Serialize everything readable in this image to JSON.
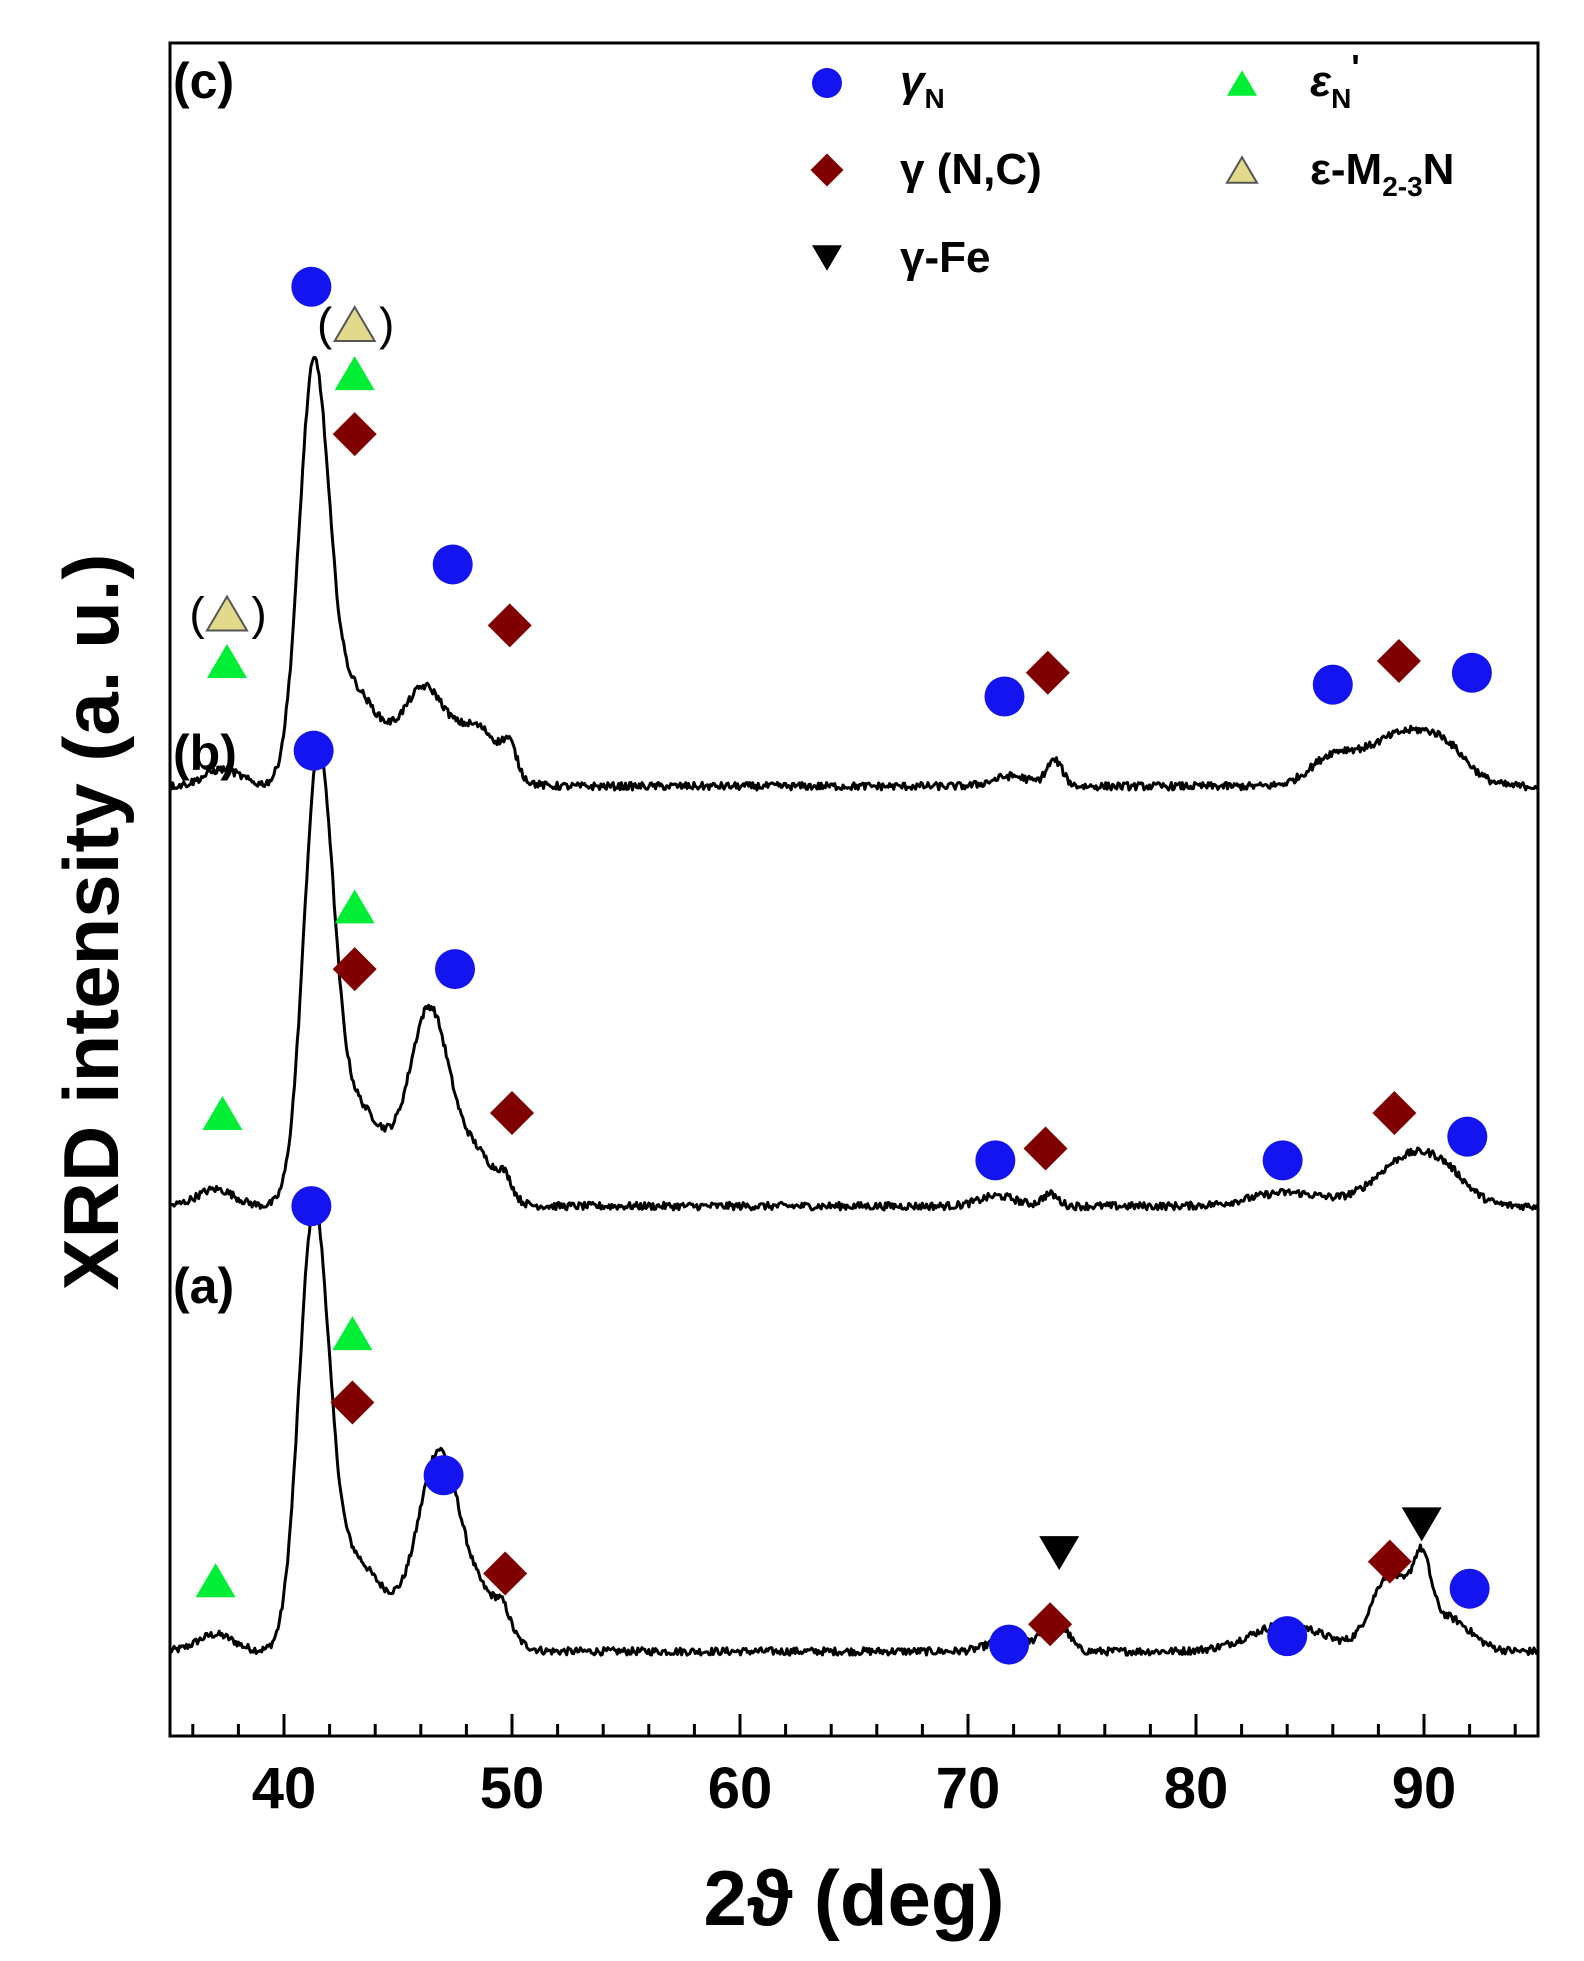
{
  "chart_data": {
    "type": "line",
    "xlabel": "2ϑ (deg)",
    "ylabel": "XRD intensity (a. u.)",
    "xlim": [
      35,
      95
    ],
    "x_major_ticks": [
      40,
      50,
      60,
      70,
      80,
      90
    ],
    "grid": false,
    "legend_position": "top",
    "legend": [
      {
        "marker": "circle",
        "color": "#1414f0",
        "label": "γ",
        "sub": "N",
        "sup": ""
      },
      {
        "marker": "diamond",
        "color": "#800000",
        "label": "γ (N,C)",
        "sub": "",
        "sup": ""
      },
      {
        "marker": "triangle-down",
        "color": "#000000",
        "label": "γ-Fe",
        "sub": "",
        "sup": ""
      },
      {
        "marker": "triangle-up",
        "color": "#00ee33",
        "label": "ε",
        "sub": "N",
        "sup": "'"
      },
      {
        "marker": "triangle-up-outline",
        "color": "#e3d98a",
        "label": "ε-M",
        "sub": "2-3",
        "sup": "",
        "suffix": "N"
      }
    ],
    "series": [
      {
        "name": "(a)",
        "baseline": 5.0,
        "peaks": [
          {
            "x": 37.0,
            "h": 1.0,
            "w": 0.8
          },
          {
            "x": 41.3,
            "h": 25.0,
            "w": 0.65
          },
          {
            "x": 42.7,
            "h": 3.5,
            "w": 0.9
          },
          {
            "x": 44.0,
            "h": 3.0,
            "w": 1.2
          },
          {
            "x": 46.8,
            "h": 11.5,
            "w": 0.9
          },
          {
            "x": 48.8,
            "h": 2.8,
            "w": 0.9
          },
          {
            "x": 49.6,
            "h": 1.0,
            "w": 0.3
          },
          {
            "x": 71.8,
            "h": 0.8,
            "w": 0.8
          },
          {
            "x": 73.4,
            "h": 1.2,
            "w": 0.35
          },
          {
            "x": 74.2,
            "h": 1.2,
            "w": 0.35
          },
          {
            "x": 84.0,
            "h": 1.6,
            "w": 1.6
          },
          {
            "x": 88.5,
            "h": 4.5,
            "w": 0.8
          },
          {
            "x": 89.9,
            "h": 4.0,
            "w": 0.4
          },
          {
            "x": 91.0,
            "h": 2.0,
            "w": 1.0
          }
        ],
        "markers": [
          {
            "type": "phase_gammaN",
            "x": 41.2,
            "y": 31.3
          },
          {
            "type": "phase_epsN",
            "x": 43.0,
            "y": 23.8
          },
          {
            "type": "phase_gammaNC",
            "x": 43.0,
            "y": 19.7
          },
          {
            "type": "phase_gammaN",
            "x": 47.0,
            "y": 15.4
          },
          {
            "type": "phase_epsN",
            "x": 37.0,
            "y": 9.2
          },
          {
            "type": "phase_gammaNC",
            "x": 49.7,
            "y": 9.6
          },
          {
            "type": "phase_gammaFe",
            "x": 74.0,
            "y": 10.8
          },
          {
            "type": "phase_gammaNC",
            "x": 73.6,
            "y": 6.6
          },
          {
            "type": "phase_gammaN",
            "x": 71.8,
            "y": 5.4
          },
          {
            "type": "phase_gammaFe",
            "x": 89.9,
            "y": 12.5
          },
          {
            "type": "phase_gammaNC",
            "x": 88.5,
            "y": 10.3
          },
          {
            "type": "phase_gammaN",
            "x": 84.0,
            "y": 5.9
          },
          {
            "type": "phase_gammaN",
            "x": 92.0,
            "y": 8.7
          }
        ]
      },
      {
        "name": "(b)",
        "baseline": 31.3,
        "peaks": [
          {
            "x": 37.0,
            "h": 1.0,
            "w": 0.8
          },
          {
            "x": 41.5,
            "h": 25.5,
            "w": 0.65
          },
          {
            "x": 42.9,
            "h": 4.0,
            "w": 0.9
          },
          {
            "x": 44.2,
            "h": 3.0,
            "w": 1.2
          },
          {
            "x": 46.4,
            "h": 11.0,
            "w": 0.85
          },
          {
            "x": 48.4,
            "h": 3.0,
            "w": 0.9
          },
          {
            "x": 49.7,
            "h": 1.0,
            "w": 0.3
          },
          {
            "x": 71.3,
            "h": 0.6,
            "w": 0.8
          },
          {
            "x": 73.6,
            "h": 0.7,
            "w": 0.35
          },
          {
            "x": 84.0,
            "h": 0.8,
            "w": 1.6
          },
          {
            "x": 89.3,
            "h": 2.8,
            "w": 1.4
          },
          {
            "x": 91.0,
            "h": 1.2,
            "w": 1.0
          }
        ],
        "markers": [
          {
            "type": "phase_epsN",
            "x": 43.1,
            "y": 49.0
          },
          {
            "type": "phase_gammaNC",
            "x": 43.1,
            "y": 45.3
          },
          {
            "type": "phase_gammaN",
            "x": 47.5,
            "y": 45.3
          },
          {
            "type": "phase_epsN",
            "x": 37.3,
            "y": 36.8
          },
          {
            "type": "phase_gammaNC",
            "x": 50.0,
            "y": 36.8
          },
          {
            "type": "phase_gammaNC",
            "x": 73.4,
            "y": 34.7
          },
          {
            "type": "phase_gammaN",
            "x": 71.2,
            "y": 34.0
          },
          {
            "type": "phase_gammaNC",
            "x": 88.7,
            "y": 36.8
          },
          {
            "type": "phase_gammaN",
            "x": 83.8,
            "y": 34.0
          },
          {
            "type": "phase_gammaN",
            "x": 91.9,
            "y": 35.4
          }
        ]
      },
      {
        "name": "(c)",
        "baseline": 56.1,
        "peaks": [
          {
            "x": 37.3,
            "h": 1.0,
            "w": 0.8
          },
          {
            "x": 41.3,
            "h": 24.0,
            "w": 0.65
          },
          {
            "x": 42.8,
            "h": 4.0,
            "w": 0.9
          },
          {
            "x": 44.0,
            "h": 2.5,
            "w": 1.2
          },
          {
            "x": 46.2,
            "h": 5.2,
            "w": 0.9
          },
          {
            "x": 48.5,
            "h": 3.4,
            "w": 1.0
          },
          {
            "x": 49.9,
            "h": 1.5,
            "w": 0.3
          },
          {
            "x": 71.9,
            "h": 0.6,
            "w": 0.8
          },
          {
            "x": 73.8,
            "h": 1.5,
            "w": 0.35
          },
          {
            "x": 86.0,
            "h": 1.6,
            "w": 1.0
          },
          {
            "x": 89.0,
            "h": 3.0,
            "w": 1.5
          },
          {
            "x": 91.0,
            "h": 1.5,
            "w": 1.0
          }
        ],
        "markers": [
          {
            "type": "phase_gammaN",
            "x": 41.2,
            "y": 85.6
          },
          {
            "type": "phase_epsM",
            "x": 43.1,
            "y": 83.4,
            "paren": true
          },
          {
            "type": "phase_epsN",
            "x": 43.1,
            "y": 80.5
          },
          {
            "type": "phase_gammaNC",
            "x": 43.1,
            "y": 76.9
          },
          {
            "type": "phase_gammaN",
            "x": 47.4,
            "y": 69.2
          },
          {
            "type": "phase_epsM",
            "x": 37.5,
            "y": 66.3,
            "paren": true
          },
          {
            "type": "phase_epsN",
            "x": 37.5,
            "y": 63.5
          },
          {
            "type": "phase_gammaNC",
            "x": 49.9,
            "y": 65.6
          },
          {
            "type": "phase_gammaN",
            "x": 41.3,
            "y": 58.2
          },
          {
            "type": "phase_gammaNC",
            "x": 73.5,
            "y": 62.8
          },
          {
            "type": "phase_gammaN",
            "x": 71.6,
            "y": 61.4
          },
          {
            "type": "phase_gammaNC",
            "x": 88.9,
            "y": 63.5
          },
          {
            "type": "phase_gammaN",
            "x": 86.0,
            "y": 62.1
          },
          {
            "type": "phase_gammaN",
            "x": 92.1,
            "y": 62.8
          }
        ]
      }
    ]
  }
}
